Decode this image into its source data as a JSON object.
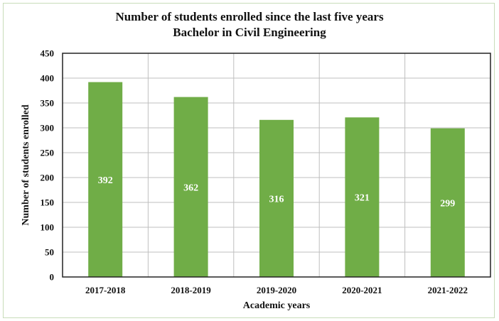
{
  "chart_data": {
    "type": "bar",
    "title": "Number of students enrolled since the last five years",
    "subtitle": "Bachelor in Civil Engineering",
    "xlabel": "Academic years",
    "ylabel": "Number of students enrolled",
    "categories": [
      "2017-2018",
      "2018-2019",
      "2019-2020",
      "2020-2021",
      "2021-2022"
    ],
    "values": [
      392,
      362,
      316,
      321,
      299
    ],
    "ylim": [
      0,
      450
    ],
    "yticks": [
      0,
      50,
      100,
      150,
      200,
      250,
      300,
      350,
      400,
      450
    ],
    "grid": true,
    "legend": "none",
    "bar_color": "#70ad47"
  }
}
